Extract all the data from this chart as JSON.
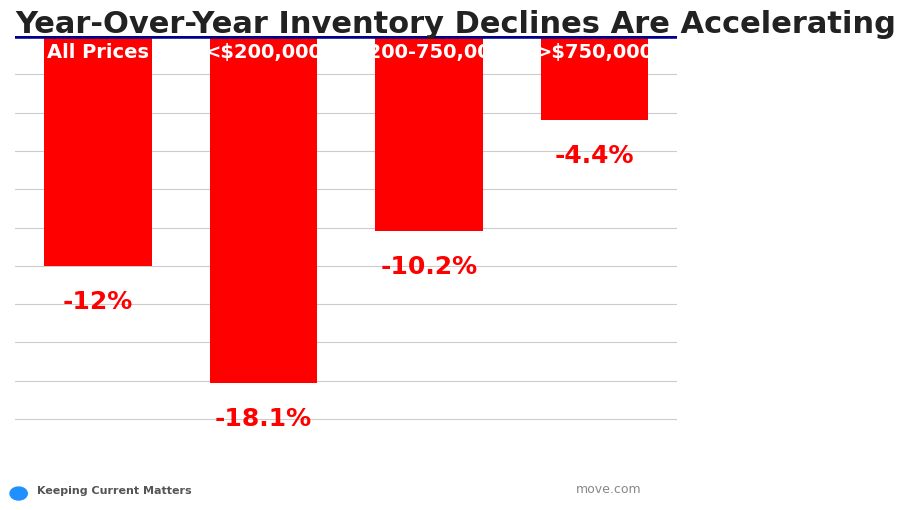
{
  "title": "Year-Over-Year Inventory Declines Are Accelerating",
  "categories": [
    "All Prices",
    "<$200,000",
    "$200-750,000",
    ">$750,000"
  ],
  "values": [
    -12.0,
    -18.1,
    -10.2,
    -4.4
  ],
  "labels": [
    "-12%",
    "-18.1%",
    "-10.2%",
    "-4.4%"
  ],
  "bar_color": "#FF0000",
  "title_fontsize": 22,
  "label_fontsize": 18,
  "cat_fontsize": 14,
  "background_color": "#FFFFFF",
  "grid_color": "#CCCCCC",
  "top_line_color": "#00008B",
  "footer_text": "Keeping Current Matters",
  "footer_right": "move.com",
  "ylim": [
    -20,
    0
  ]
}
